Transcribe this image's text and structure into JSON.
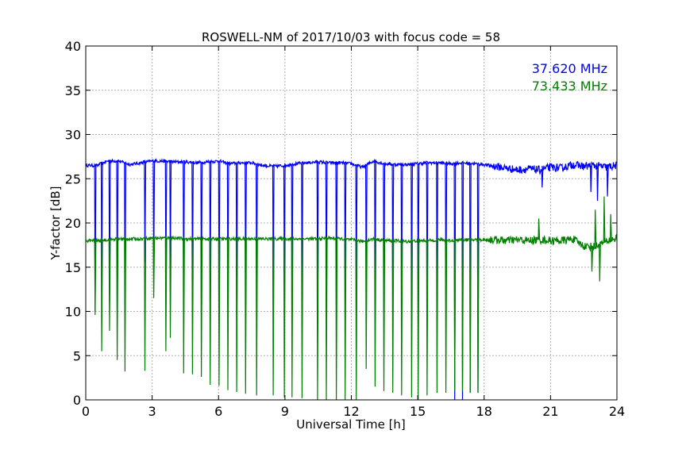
{
  "chart_data": {
    "type": "line",
    "title": "ROSWELL-NM of 2017/10/03 with focus code = 58",
    "xlabel": "Universal Time [h]",
    "ylabel": "Y-factor [dB]",
    "xlim": [
      0,
      24
    ],
    "ylim": [
      0,
      40
    ],
    "xticks": [
      0,
      3,
      6,
      9,
      12,
      15,
      18,
      21,
      24
    ],
    "xtick_labels": [
      "0",
      "3",
      "6",
      "9",
      "12",
      "15",
      "18",
      "21",
      "24"
    ],
    "yticks": [
      0,
      5,
      10,
      15,
      20,
      25,
      30,
      35,
      40
    ],
    "ytick_labels": [
      "0",
      "5",
      "10",
      "15",
      "20",
      "25",
      "30",
      "35",
      "40"
    ],
    "grid": true,
    "legend_position": "top-right",
    "series": [
      {
        "name": "37.620 MHz",
        "color": "#0000ff",
        "x": [
          0,
          0.5,
          1.0,
          1.5,
          2.0,
          2.5,
          3.0,
          3.5,
          4.0,
          4.5,
          5.0,
          5.5,
          6.0,
          6.5,
          7.0,
          7.5,
          8.0,
          8.5,
          9.0,
          9.5,
          10.0,
          10.5,
          11.0,
          11.5,
          12.0,
          12.5,
          13.0,
          13.5,
          14.0,
          14.5,
          15.0,
          15.5,
          16.0,
          16.5,
          17.0,
          17.5,
          18.0,
          18.5,
          19.0,
          19.5,
          20.0,
          20.5,
          21.0,
          21.5,
          22.0,
          22.5,
          23.0,
          23.5,
          24.0
        ],
        "y": [
          26.5,
          26.5,
          27.0,
          27.0,
          26.6,
          26.8,
          27.0,
          27.0,
          26.9,
          26.9,
          26.8,
          26.9,
          27.0,
          26.7,
          26.8,
          26.8,
          26.5,
          26.4,
          26.5,
          26.7,
          26.8,
          26.9,
          26.8,
          26.8,
          26.7,
          26.3,
          27.0,
          26.7,
          26.6,
          26.6,
          26.7,
          26.8,
          26.8,
          26.7,
          26.8,
          26.7,
          26.6,
          26.4,
          26.2,
          26.0,
          26.1,
          26.0,
          26.3,
          26.2,
          26.6,
          26.4,
          26.5,
          26.3,
          26.5
        ],
        "dips": [
          {
            "x": 0.4,
            "y": 10.0
          },
          {
            "x": 0.7,
            "y": 12.5
          },
          {
            "x": 1.05,
            "y": 11.0
          },
          {
            "x": 1.4,
            "y": 10.5
          },
          {
            "x": 1.75,
            "y": 10.0
          },
          {
            "x": 2.65,
            "y": 15.5
          },
          {
            "x": 3.05,
            "y": 14.5
          },
          {
            "x": 3.6,
            "y": 13.5
          },
          {
            "x": 3.8,
            "y": 14.5
          },
          {
            "x": 4.4,
            "y": 12.0
          },
          {
            "x": 4.8,
            "y": 12.0
          },
          {
            "x": 5.2,
            "y": 11.0
          },
          {
            "x": 5.6,
            "y": 10.5
          },
          {
            "x": 6.0,
            "y": 11.0
          },
          {
            "x": 6.4,
            "y": 10.5
          },
          {
            "x": 6.8,
            "y": 11.0
          },
          {
            "x": 7.2,
            "y": 11.0
          },
          {
            "x": 7.7,
            "y": 11.0
          },
          {
            "x": 8.45,
            "y": 11.5
          },
          {
            "x": 8.95,
            "y": 11.5
          },
          {
            "x": 9.3,
            "y": 11.0
          },
          {
            "x": 9.75,
            "y": 11.0
          },
          {
            "x": 10.45,
            "y": 10.5
          },
          {
            "x": 10.85,
            "y": 10.0
          },
          {
            "x": 11.3,
            "y": 10.5
          },
          {
            "x": 11.7,
            "y": 10.0
          },
          {
            "x": 12.2,
            "y": 10.5
          },
          {
            "x": 12.65,
            "y": 11.0
          },
          {
            "x": 13.05,
            "y": 10.0
          },
          {
            "x": 13.45,
            "y": 10.0
          },
          {
            "x": 13.85,
            "y": 10.5
          },
          {
            "x": 14.25,
            "y": 10.5
          },
          {
            "x": 14.7,
            "y": 10.0
          },
          {
            "x": 15.0,
            "y": 10.0
          },
          {
            "x": 15.4,
            "y": 10.0
          },
          {
            "x": 15.85,
            "y": 10.0
          },
          {
            "x": 16.25,
            "y": 10.0
          },
          {
            "x": 16.65,
            "y": 0.0
          },
          {
            "x": 17.0,
            "y": 0.0
          },
          {
            "x": 17.35,
            "y": 0.8
          },
          {
            "x": 17.7,
            "y": 0.8
          },
          {
            "x": 20.6,
            "y": 24.0
          },
          {
            "x": 22.8,
            "y": 23.5
          },
          {
            "x": 23.1,
            "y": 22.5
          },
          {
            "x": 23.55,
            "y": 23.0
          }
        ]
      },
      {
        "name": "73.433 MHz",
        "color": "#008000",
        "x": [
          0,
          0.5,
          1.0,
          1.5,
          2.0,
          2.5,
          3.0,
          3.5,
          4.0,
          4.5,
          5.0,
          5.5,
          6.0,
          6.5,
          7.0,
          7.5,
          8.0,
          8.5,
          9.0,
          9.5,
          10.0,
          10.5,
          11.0,
          11.5,
          12.0,
          12.5,
          13.0,
          13.5,
          14.0,
          14.5,
          15.0,
          15.5,
          16.0,
          16.5,
          17.0,
          17.5,
          18.0,
          18.5,
          19.0,
          19.5,
          20.0,
          20.5,
          21.0,
          21.5,
          22.0,
          22.5,
          23.0,
          23.5,
          24.0
        ],
        "y": [
          18.0,
          18.0,
          18.1,
          18.2,
          18.2,
          18.2,
          18.3,
          18.3,
          18.3,
          18.2,
          18.2,
          18.2,
          18.2,
          18.2,
          18.2,
          18.2,
          18.2,
          18.2,
          18.2,
          18.2,
          18.2,
          18.2,
          18.3,
          18.2,
          18.1,
          17.9,
          18.2,
          18.0,
          18.0,
          17.9,
          18.0,
          18.0,
          18.1,
          18.0,
          18.1,
          18.1,
          18.1,
          18.1,
          18.0,
          18.1,
          18.0,
          18.1,
          18.0,
          18.0,
          18.2,
          17.4,
          17.3,
          17.9,
          18.3
        ],
        "dips": [
          {
            "x": 0.4,
            "y": 9.6
          },
          {
            "x": 0.7,
            "y": 5.5
          },
          {
            "x": 1.05,
            "y": 7.8
          },
          {
            "x": 1.4,
            "y": 4.5
          },
          {
            "x": 1.75,
            "y": 3.2
          },
          {
            "x": 2.65,
            "y": 3.3
          },
          {
            "x": 3.05,
            "y": 11.5
          },
          {
            "x": 3.6,
            "y": 5.5
          },
          {
            "x": 3.8,
            "y": 7.0
          },
          {
            "x": 4.4,
            "y": 3.0
          },
          {
            "x": 4.8,
            "y": 2.9
          },
          {
            "x": 5.2,
            "y": 2.6
          },
          {
            "x": 5.6,
            "y": 1.7
          },
          {
            "x": 6.0,
            "y": 1.6
          },
          {
            "x": 6.4,
            "y": 1.1
          },
          {
            "x": 6.8,
            "y": 0.9
          },
          {
            "x": 7.2,
            "y": 0.7
          },
          {
            "x": 7.7,
            "y": 0.5
          },
          {
            "x": 8.45,
            "y": 0.5
          },
          {
            "x": 8.95,
            "y": 0.3
          },
          {
            "x": 9.3,
            "y": 0.3
          },
          {
            "x": 9.75,
            "y": 0.2
          },
          {
            "x": 10.45,
            "y": 0.0
          },
          {
            "x": 10.85,
            "y": 0.0
          },
          {
            "x": 11.3,
            "y": 0.0
          },
          {
            "x": 11.7,
            "y": 0.0
          },
          {
            "x": 12.2,
            "y": 0.0
          },
          {
            "x": 12.65,
            "y": 3.5
          },
          {
            "x": 13.05,
            "y": 1.5
          },
          {
            "x": 13.45,
            "y": 1.0
          },
          {
            "x": 13.85,
            "y": 0.8
          },
          {
            "x": 14.25,
            "y": 0.5
          },
          {
            "x": 14.7,
            "y": 0.3
          },
          {
            "x": 15.0,
            "y": 0.0
          },
          {
            "x": 15.4,
            "y": 0.5
          },
          {
            "x": 15.85,
            "y": 0.8
          },
          {
            "x": 16.25,
            "y": 0.8
          },
          {
            "x": 16.65,
            "y": 1.0
          },
          {
            "x": 17.0,
            "y": 1.0
          },
          {
            "x": 17.35,
            "y": 0.8
          },
          {
            "x": 17.7,
            "y": 0.8
          },
          {
            "x": 22.85,
            "y": 14.5
          },
          {
            "x": 23.2,
            "y": 13.4
          },
          {
            "x": 23.0,
            "y": 21.5
          },
          {
            "x": 20.45,
            "y": 20.5
          },
          {
            "x": 23.4,
            "y": 23.0
          },
          {
            "x": 23.7,
            "y": 21.0
          }
        ]
      }
    ]
  }
}
